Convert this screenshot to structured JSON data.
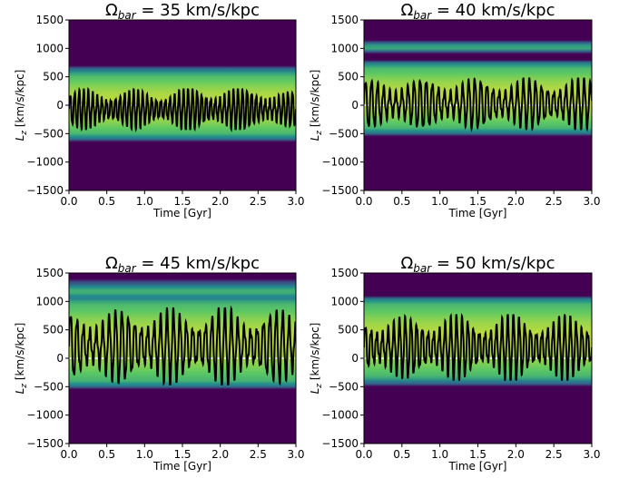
{
  "chart_data": [
    {
      "type": "heatmap",
      "title_main": "Ω",
      "title_sub": "bar",
      "title_rest": " = 35 km/s/kpc",
      "xlabel": "Time [Gyr]",
      "ylabel_main": "L",
      "ylabel_sub": "z",
      "ylabel_rest": " [km/s/kpc]",
      "xlim": [
        0.0,
        3.0
      ],
      "ylim": [
        -1500,
        1500
      ],
      "xticks": [
        "0.0",
        "0.5",
        "1.0",
        "1.5",
        "2.0",
        "2.5",
        "3.0"
      ],
      "yticks": [
        "1500",
        "1000",
        "500",
        "0",
        "−500",
        "−1000",
        "−1500"
      ],
      "colormap": "viridis",
      "background_color": "#440154",
      "density_band": {
        "Lz_min": -620,
        "Lz_max": 650,
        "outer_band": null
      },
      "reference_line": {
        "Lz": 0,
        "color": "#ffffff",
        "style": "dashed"
      },
      "series": [
        {
          "color": "#000000",
          "oscillation_period_gyr": 0.06,
          "Lz_min": -420,
          "Lz_max": 280,
          "description_values": [
            [
              0.0,
              -200
            ],
            [
              0.5,
              -260
            ],
            [
              1.0,
              100
            ],
            [
              1.5,
              280
            ],
            [
              2.0,
              -420
            ],
            [
              2.5,
              -300
            ],
            [
              3.0,
              -100
            ]
          ]
        }
      ]
    },
    {
      "type": "heatmap",
      "title_main": "Ω",
      "title_sub": "bar",
      "title_rest": " = 40 km/s/kpc",
      "xlabel": "Time [Gyr]",
      "ylabel_main": "L",
      "ylabel_sub": "z",
      "ylabel_rest": " [km/s/kpc]",
      "xlim": [
        0.0,
        3.0
      ],
      "ylim": [
        -1500,
        1500
      ],
      "xticks": [
        "0.0",
        "0.5",
        "1.0",
        "1.5",
        "2.0",
        "2.5",
        "3.0"
      ],
      "yticks": [
        "1500",
        "1000",
        "500",
        "0",
        "−500",
        "−1000",
        "−1500"
      ],
      "colormap": "viridis",
      "background_color": "#440154",
      "density_band": {
        "Lz_min": -520,
        "Lz_max": 780,
        "outer_band": [
          920,
          1120
        ]
      },
      "reference_line": {
        "Lz": 0,
        "color": "#ffffff",
        "style": "dashed"
      },
      "series": [
        {
          "color": "#000000",
          "oscillation_period_gyr": 0.08,
          "Lz_min": -420,
          "Lz_max": 470,
          "description_values": [
            [
              0.0,
              -300
            ],
            [
              0.5,
              400
            ],
            [
              1.0,
              -400
            ],
            [
              1.5,
              420
            ],
            [
              2.0,
              -380
            ],
            [
              2.5,
              430
            ],
            [
              3.0,
              -350
            ]
          ]
        }
      ]
    },
    {
      "type": "heatmap",
      "title_main": "Ω",
      "title_sub": "bar",
      "title_rest": " = 45 km/s/kpc",
      "xlabel": "Time [Gyr]",
      "ylabel_main": "L",
      "ylabel_sub": "z",
      "ylabel_rest": " [km/s/kpc]",
      "xlim": [
        0.0,
        3.0
      ],
      "ylim": [
        -1500,
        1500
      ],
      "xticks": [
        "0.0",
        "0.5",
        "1.0",
        "1.5",
        "2.0",
        "2.5",
        "3.0"
      ],
      "yticks": [
        "1500",
        "1000",
        "500",
        "0",
        "−500",
        "−1000",
        "−1500"
      ],
      "colormap": "viridis",
      "background_color": "#440154",
      "density_band": {
        "Lz_min": -520,
        "Lz_max": 1100,
        "outer_band": [
          1000,
          1350
        ]
      },
      "reference_line": {
        "Lz": 0,
        "color": "#ffffff",
        "style": "dashed"
      },
      "series": [
        {
          "color": "#000000",
          "oscillation_period_gyr": 0.085,
          "Lz_min": -460,
          "Lz_max": 880,
          "description_values": [
            [
              0.0,
              500
            ],
            [
              0.5,
              -400
            ],
            [
              1.0,
              850
            ],
            [
              1.5,
              -420
            ],
            [
              2.0,
              860
            ],
            [
              2.5,
              -380
            ],
            [
              3.0,
              650
            ]
          ]
        }
      ]
    },
    {
      "type": "heatmap",
      "title_main": "Ω",
      "title_sub": "bar",
      "title_rest": " = 50 km/s/kpc",
      "xlabel": "Time [Gyr]",
      "ylabel_main": "L",
      "ylabel_sub": "z",
      "ylabel_rest": " [km/s/kpc]",
      "xlim": [
        0.0,
        3.0
      ],
      "ylim": [
        -1500,
        1500
      ],
      "xticks": [
        "0.0",
        "0.5",
        "1.0",
        "1.5",
        "2.0",
        "2.5",
        "3.0"
      ],
      "yticks": [
        "1500",
        "1000",
        "500",
        "0",
        "−500",
        "−1000",
        "−1500"
      ],
      "colormap": "viridis",
      "background_color": "#440154",
      "density_band": {
        "Lz_min": -450,
        "Lz_max": 1080,
        "outer_band": null
      },
      "reference_line": {
        "Lz": 0,
        "color": "#ffffff",
        "style": "dashed"
      },
      "series": [
        {
          "color": "#000000",
          "oscillation_period_gyr": 0.075,
          "Lz_min": -380,
          "Lz_max": 760,
          "description_values": [
            [
              0.0,
              600
            ],
            [
              0.5,
              -350
            ],
            [
              1.0,
              700
            ],
            [
              1.5,
              -360
            ],
            [
              2.0,
              720
            ],
            [
              2.5,
              -340
            ],
            [
              3.0,
              740
            ]
          ]
        }
      ]
    }
  ]
}
